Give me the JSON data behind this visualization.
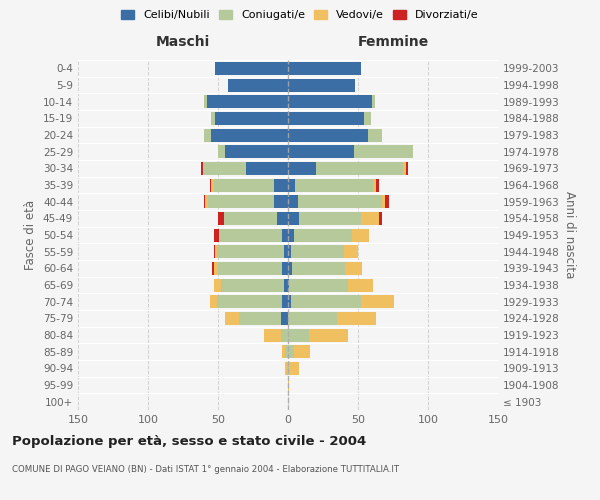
{
  "age_groups": [
    "100+",
    "95-99",
    "90-94",
    "85-89",
    "80-84",
    "75-79",
    "70-74",
    "65-69",
    "60-64",
    "55-59",
    "50-54",
    "45-49",
    "40-44",
    "35-39",
    "30-34",
    "25-29",
    "20-24",
    "15-19",
    "10-14",
    "5-9",
    "0-4"
  ],
  "birth_years": [
    "≤ 1903",
    "1904-1908",
    "1909-1913",
    "1914-1918",
    "1919-1923",
    "1924-1928",
    "1929-1933",
    "1934-1938",
    "1939-1943",
    "1944-1948",
    "1949-1953",
    "1954-1958",
    "1959-1963",
    "1964-1968",
    "1969-1973",
    "1974-1978",
    "1979-1983",
    "1984-1988",
    "1989-1993",
    "1994-1998",
    "1999-2003"
  ],
  "maschi": {
    "celibe": [
      0,
      0,
      0,
      0,
      0,
      5,
      4,
      3,
      4,
      3,
      4,
      8,
      10,
      10,
      30,
      45,
      55,
      52,
      58,
      43,
      52
    ],
    "coniugato": [
      0,
      0,
      1,
      2,
      5,
      30,
      47,
      45,
      46,
      48,
      45,
      38,
      47,
      43,
      30,
      5,
      5,
      3,
      2,
      0,
      0
    ],
    "vedovo": [
      0,
      0,
      1,
      2,
      12,
      10,
      5,
      5,
      3,
      1,
      0,
      0,
      2,
      2,
      1,
      0,
      0,
      0,
      0,
      0,
      0
    ],
    "divorziato": [
      0,
      0,
      0,
      0,
      0,
      0,
      0,
      0,
      1,
      1,
      4,
      4,
      1,
      1,
      1,
      0,
      0,
      0,
      0,
      0,
      0
    ]
  },
  "femmine": {
    "celibe": [
      0,
      0,
      0,
      0,
      0,
      0,
      2,
      1,
      3,
      2,
      4,
      8,
      7,
      5,
      20,
      47,
      57,
      54,
      60,
      48,
      52
    ],
    "coniugata": [
      0,
      0,
      1,
      4,
      15,
      35,
      50,
      42,
      38,
      38,
      42,
      44,
      60,
      56,
      62,
      42,
      10,
      5,
      2,
      0,
      0
    ],
    "vedova": [
      0,
      1,
      7,
      12,
      28,
      28,
      24,
      18,
      12,
      10,
      12,
      13,
      2,
      2,
      2,
      0,
      0,
      0,
      0,
      0,
      0
    ],
    "divorziata": [
      0,
      0,
      0,
      0,
      0,
      0,
      0,
      0,
      0,
      0,
      0,
      2,
      3,
      2,
      2,
      0,
      0,
      0,
      0,
      0,
      0
    ]
  },
  "colors": {
    "celibe": "#3a6ea5",
    "coniugato": "#b5c99a",
    "vedovo": "#f0c060",
    "divorziato": "#cc2222"
  },
  "xlim": 150,
  "title": "Popolazione per età, sesso e stato civile - 2004",
  "subtitle": "COMUNE DI PAGO VEIANO (BN) - Dati ISTAT 1° gennaio 2004 - Elaborazione TUTTITALIA.IT",
  "xlabel_left": "Maschi",
  "xlabel_right": "Femmine",
  "ylabel_left": "Fasce di età",
  "ylabel_right": "Anni di nascita",
  "background_color": "#f5f5f5",
  "grid_color": "#cccccc"
}
